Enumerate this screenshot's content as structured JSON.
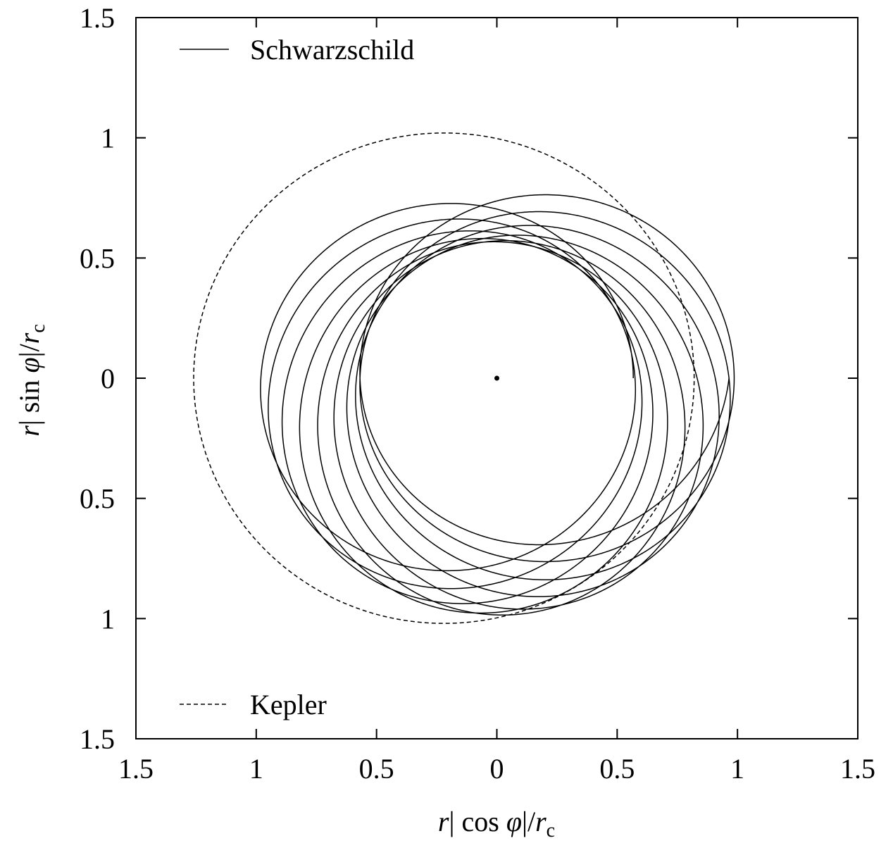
{
  "chart_data": {
    "type": "line",
    "title": "",
    "xlabel": {
      "pre": "r",
      "func": "cos",
      "phi": "φ",
      "den": "r",
      "sub": "c"
    },
    "ylabel": {
      "pre": "r",
      "func": "sin",
      "phi": "φ",
      "den": "r",
      "sub": "c"
    },
    "xlim": [
      -1.5,
      1.5
    ],
    "ylim": [
      -1.5,
      1.5
    ],
    "xticks": [
      -1.5,
      -1,
      -0.5,
      0,
      0.5,
      1,
      1.5
    ],
    "yticks": [
      -1.5,
      -1,
      -0.5,
      0,
      0.5,
      1,
      1.5
    ],
    "xtick_labels": [
      "1.5",
      "1",
      "0.5",
      "0",
      "0.5",
      "1",
      "1.5"
    ],
    "ytick_labels": [
      "1.5",
      "1",
      "0.5",
      "0",
      "0.5",
      "1",
      "1.5"
    ],
    "grid": false,
    "series": [
      {
        "name": "Schwarzschild",
        "style": "solid",
        "color": "#000000",
        "orbit": {
          "semi_latus": 0.72,
          "eccentricity": 0.27,
          "precession_per_orbit_deg": 20,
          "orbits": 10,
          "focus": [
            0,
            0
          ]
        }
      },
      {
        "name": "Kepler",
        "style": "dashed",
        "color": "#000000",
        "ellipse": {
          "center": [
            -0.22,
            0.0
          ],
          "semi_axis_x": 1.04,
          "semi_axis_y": 1.02
        }
      }
    ],
    "central_point": {
      "x": 0.0,
      "y": 0.0
    },
    "legend": [
      {
        "label": "Schwarzschild",
        "style": "solid",
        "placement": "top-left"
      },
      {
        "label": "Kepler",
        "style": "dashed",
        "placement": "bottom-left"
      }
    ]
  }
}
